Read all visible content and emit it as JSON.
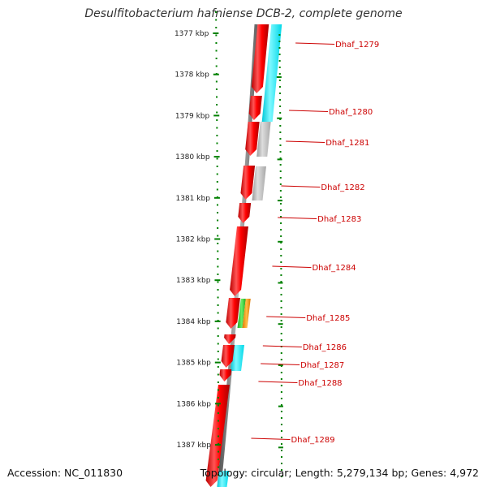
{
  "title": "Desulfitobacterium hafniense DCB-2, complete genome",
  "accession": "Accession: NC_011830",
  "topology": "Topology: circular; Length: 5,279,134 bp; Genes: 4,972",
  "kbp_labels": [
    "1377 kbp",
    "1378 kbp",
    "1379 kbp",
    "1380 kbp",
    "1381 kbp",
    "1382 kbp",
    "1383 kbp",
    "1384 kbp",
    "1385 kbp",
    "1386 kbp",
    "1387 kbp"
  ],
  "genes": [
    "Dhaf_1279",
    "Dhaf_1280",
    "Dhaf_1281",
    "Dhaf_1282",
    "Dhaf_1283",
    "Dhaf_1284",
    "Dhaf_1285",
    "Dhaf_1286",
    "Dhaf_1287",
    "Dhaf_1288",
    "Dhaf_1289"
  ],
  "colors": {
    "cds": "#ff0000",
    "cyan_feature": "#00f0ff",
    "gray_feature": "#b0b0b0",
    "green_feature": "#33cc33",
    "orange_feature": "#ff9900",
    "backbone": "#777777",
    "ticks": "#008000",
    "gene_label": "#cc0000"
  }
}
